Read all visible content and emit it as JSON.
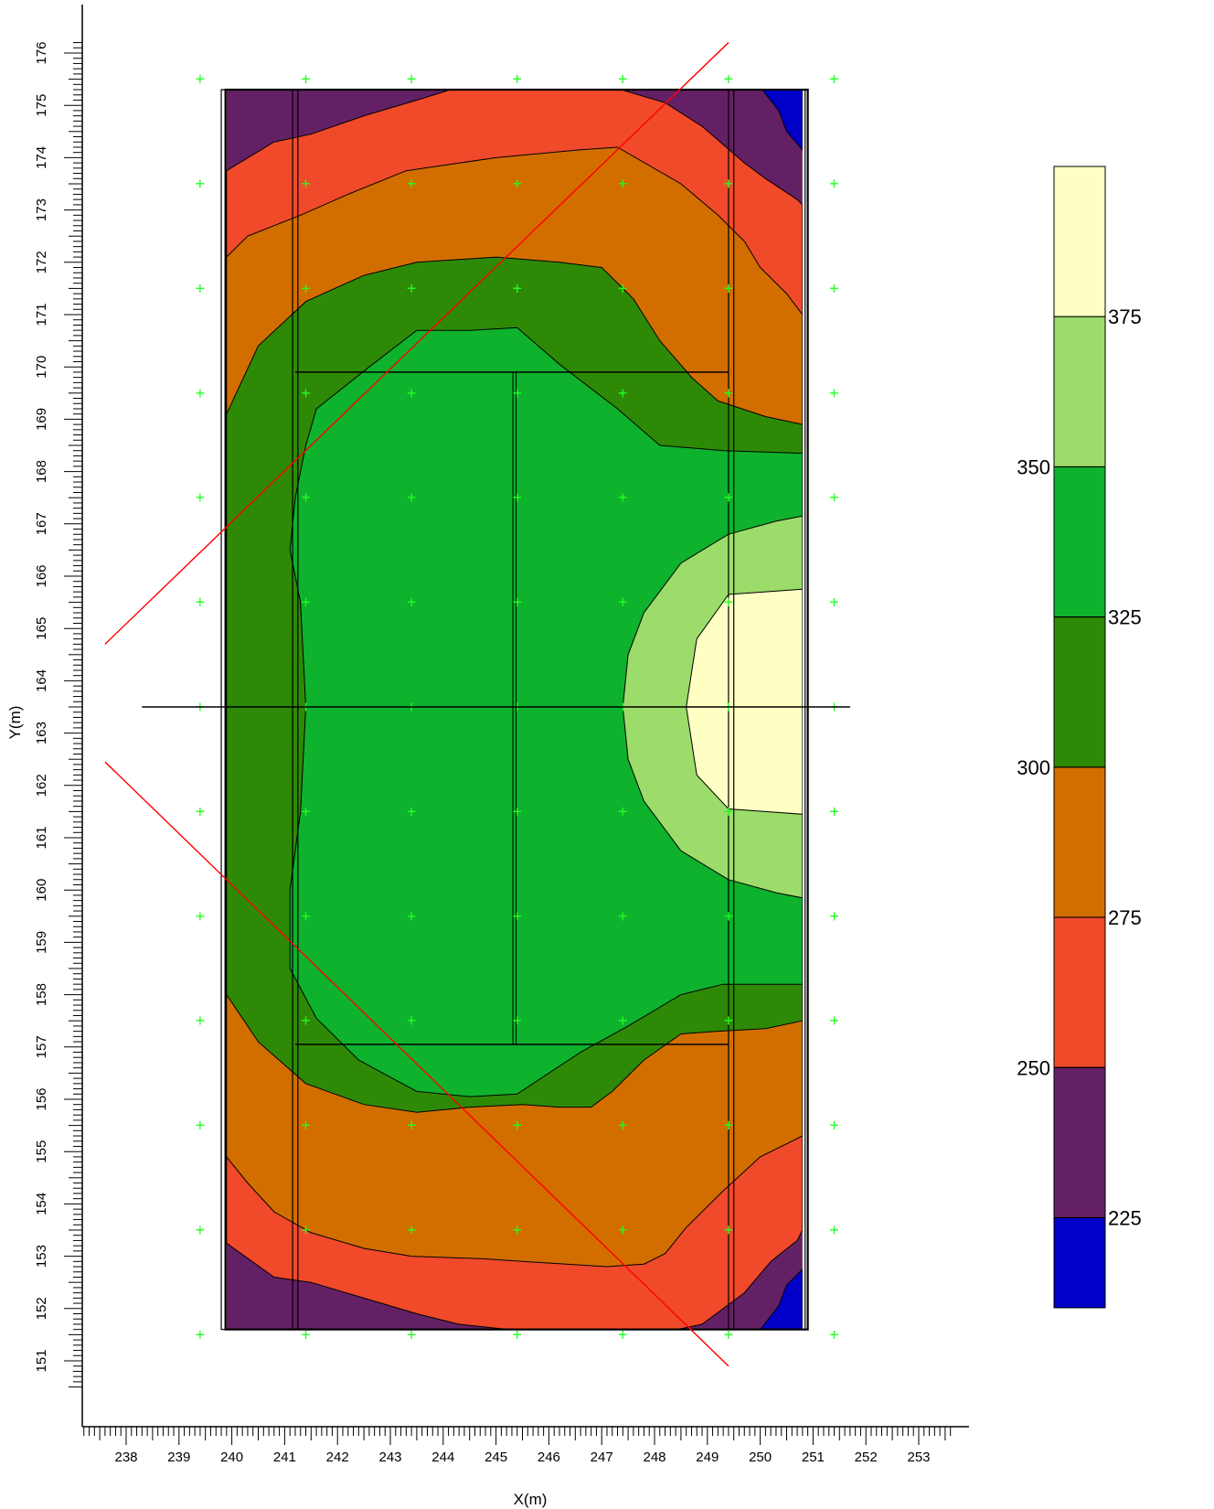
{
  "chart_data": {
    "type": "contour",
    "xlabel": "X(m)",
    "ylabel": "Y(m)",
    "xlim": [
      237.5,
      253.6
    ],
    "ylim": [
      150.7,
      176.2
    ],
    "x_ticks": [
      238,
      239,
      240,
      241,
      242,
      243,
      244,
      245,
      246,
      247,
      248,
      249,
      250,
      251,
      252,
      253
    ],
    "y_ticks": [
      151,
      152,
      153,
      154,
      155,
      156,
      157,
      158,
      159,
      160,
      161,
      162,
      163,
      164,
      165,
      166,
      167,
      168,
      169,
      170,
      171,
      172,
      173,
      174,
      175,
      176
    ],
    "colorbar": {
      "levels": [
        225,
        250,
        275,
        300,
        325,
        350,
        375
      ],
      "labels": [
        "225",
        "250",
        "275",
        "300",
        "325",
        "350",
        "375"
      ],
      "bands": [
        {
          "from": 210,
          "to": 225,
          "color": "#0000c8"
        },
        {
          "from": 225,
          "to": 250,
          "color": "#642064"
        },
        {
          "from": 250,
          "to": 275,
          "color": "#f04a2a"
        },
        {
          "from": 275,
          "to": 300,
          "color": "#d26e00"
        },
        {
          "from": 300,
          "to": 325,
          "color": "#2e8a06"
        },
        {
          "from": 325,
          "to": 350,
          "color": "#0eb22c"
        },
        {
          "from": 350,
          "to": 375,
          "color": "#9cdc6a"
        },
        {
          "from": 375,
          "to": 400,
          "color": "#ffffc4"
        }
      ]
    },
    "survey_grid": {
      "x": [
        239.4,
        241.4,
        243.4,
        245.4,
        247.4,
        249.4,
        251.4
      ],
      "y": [
        151.5,
        153.5,
        155.5,
        157.5,
        159.5,
        161.5,
        163.5,
        165.5,
        167.5,
        169.5,
        171.5,
        173.5,
        175.5
      ],
      "marker": "+",
      "color": "#22ff22"
    },
    "domain": {
      "x": [
        239.85,
        250.8
      ],
      "y": [
        151.6,
        175.3
      ]
    },
    "contour_fields": [
      {
        "level": 225,
        "color": "#642064",
        "polygon": [
          [
            239.9,
            175.3
          ],
          [
            251.0,
            175.3
          ],
          [
            251.0,
            151.6
          ],
          [
            239.9,
            151.6
          ]
        ]
      },
      {
        "level": 250,
        "color": "#f04a2a",
        "polygon": [
          [
            239.9,
            173.75
          ],
          [
            240.8,
            174.3
          ],
          [
            241.5,
            174.45
          ],
          [
            242.5,
            174.8
          ],
          [
            243.5,
            175.1
          ],
          [
            244.3,
            175.35
          ],
          [
            245.7,
            175.4
          ],
          [
            247.2,
            175.35
          ],
          [
            248.2,
            175.05
          ],
          [
            248.9,
            174.6
          ],
          [
            249.7,
            173.9
          ],
          [
            250.1,
            173.6
          ],
          [
            250.7,
            173.2
          ],
          [
            250.8,
            173.1
          ],
          [
            250.8,
            153.5
          ],
          [
            250.7,
            153.3
          ],
          [
            250.2,
            152.9
          ],
          [
            249.7,
            152.3
          ],
          [
            248.9,
            151.7
          ],
          [
            248.2,
            151.55
          ],
          [
            247.2,
            151.55
          ],
          [
            245.7,
            151.55
          ],
          [
            244.3,
            151.7
          ],
          [
            243.5,
            151.9
          ],
          [
            242.5,
            152.2
          ],
          [
            241.5,
            152.5
          ],
          [
            240.8,
            152.6
          ],
          [
            239.9,
            153.25
          ]
        ]
      },
      {
        "level": 275,
        "color": "#d26e00",
        "polygon": [
          [
            239.9,
            172.1
          ],
          [
            240.3,
            172.5
          ],
          [
            241.3,
            172.9
          ],
          [
            242.2,
            173.3
          ],
          [
            243.3,
            173.75
          ],
          [
            245.0,
            174.0
          ],
          [
            246.6,
            174.15
          ],
          [
            247.3,
            174.2
          ],
          [
            248.5,
            173.5
          ],
          [
            249.2,
            172.9
          ],
          [
            249.7,
            172.4
          ],
          [
            250.0,
            171.9
          ],
          [
            250.5,
            171.4
          ],
          [
            250.8,
            171.0
          ],
          [
            250.8,
            155.3
          ],
          [
            250.6,
            155.2
          ],
          [
            250.0,
            154.9
          ],
          [
            249.3,
            154.25
          ],
          [
            248.6,
            153.55
          ],
          [
            248.2,
            153.05
          ],
          [
            247.8,
            152.85
          ],
          [
            247.1,
            152.8
          ],
          [
            245.5,
            152.9
          ],
          [
            244.8,
            152.95
          ],
          [
            243.4,
            153.0
          ],
          [
            242.5,
            153.15
          ],
          [
            241.5,
            153.45
          ],
          [
            240.8,
            153.85
          ],
          [
            240.3,
            154.4
          ],
          [
            239.9,
            154.9
          ]
        ]
      },
      {
        "level": 300,
        "color": "#2e8a06",
        "polygon": [
          [
            239.9,
            169.1
          ],
          [
            240.5,
            170.4
          ],
          [
            241.4,
            171.25
          ],
          [
            242.5,
            171.75
          ],
          [
            243.5,
            172.0
          ],
          [
            245.0,
            172.1
          ],
          [
            246.2,
            172.0
          ],
          [
            247.0,
            171.9
          ],
          [
            247.6,
            171.3
          ],
          [
            248.1,
            170.5
          ],
          [
            248.7,
            169.8
          ],
          [
            249.2,
            169.35
          ],
          [
            250.1,
            169.05
          ],
          [
            250.8,
            168.9
          ],
          [
            250.8,
            157.5
          ],
          [
            250.1,
            157.35
          ],
          [
            249.2,
            157.3
          ],
          [
            248.5,
            157.25
          ],
          [
            247.8,
            156.75
          ],
          [
            247.2,
            156.15
          ],
          [
            246.8,
            155.85
          ],
          [
            246.2,
            155.85
          ],
          [
            245.5,
            155.9
          ],
          [
            244.5,
            155.85
          ],
          [
            243.5,
            155.75
          ],
          [
            242.5,
            155.9
          ],
          [
            241.4,
            156.3
          ],
          [
            240.5,
            157.1
          ],
          [
            239.9,
            158.0
          ]
        ]
      },
      {
        "level": 325,
        "color": "#0eb22c",
        "polygon": [
          [
            241.2,
            167.5
          ],
          [
            241.4,
            168.5
          ],
          [
            241.6,
            169.2
          ],
          [
            242.6,
            170.0
          ],
          [
            243.5,
            170.7
          ],
          [
            244.5,
            170.7
          ],
          [
            245.4,
            170.75
          ],
          [
            246.2,
            170.05
          ],
          [
            247.3,
            169.2
          ],
          [
            248.1,
            168.5
          ],
          [
            249.3,
            168.4
          ],
          [
            250.8,
            168.35
          ],
          [
            250.8,
            158.2
          ],
          [
            249.3,
            158.2
          ],
          [
            248.5,
            158.0
          ],
          [
            247.5,
            157.4
          ],
          [
            246.6,
            156.9
          ],
          [
            246.0,
            156.5
          ],
          [
            245.4,
            156.1
          ],
          [
            244.5,
            156.05
          ],
          [
            243.5,
            156.15
          ],
          [
            242.4,
            156.75
          ],
          [
            241.6,
            157.55
          ],
          [
            241.1,
            158.5
          ],
          [
            241.1,
            160.0
          ],
          [
            241.3,
            161.5
          ],
          [
            241.4,
            163.5
          ],
          [
            241.3,
            165.5
          ],
          [
            241.1,
            166.5
          ]
        ]
      },
      {
        "level": 350,
        "color": "#9cdc6a",
        "polygon": [
          [
            250.8,
            167.15
          ],
          [
            250.3,
            167.05
          ],
          [
            249.4,
            166.8
          ],
          [
            248.5,
            166.25
          ],
          [
            247.8,
            165.3
          ],
          [
            247.5,
            164.5
          ],
          [
            247.4,
            163.5
          ],
          [
            247.5,
            162.5
          ],
          [
            247.8,
            161.7
          ],
          [
            248.5,
            160.75
          ],
          [
            249.4,
            160.2
          ],
          [
            250.3,
            159.95
          ],
          [
            250.8,
            159.85
          ]
        ]
      },
      {
        "level": 375,
        "color": "#ffffc4",
        "polygon": [
          [
            250.8,
            165.75
          ],
          [
            249.4,
            165.65
          ],
          [
            248.8,
            164.8
          ],
          [
            248.6,
            163.5
          ],
          [
            248.8,
            162.2
          ],
          [
            249.4,
            161.55
          ],
          [
            250.8,
            161.45
          ]
        ]
      },
      {
        "level": 210,
        "color": "#0000c8",
        "polygon": [
          [
            250.0,
            175.35
          ],
          [
            250.8,
            175.35
          ],
          [
            250.8,
            174.15
          ],
          [
            250.5,
            174.5
          ],
          [
            250.35,
            174.9
          ]
        ]
      },
      {
        "level": 210,
        "color": "#0000c8",
        "polygon": [
          [
            250.0,
            151.6
          ],
          [
            250.8,
            151.6
          ],
          [
            250.8,
            152.75
          ],
          [
            250.5,
            152.45
          ],
          [
            250.35,
            152.05
          ]
        ]
      }
    ],
    "overlay_lines": [
      {
        "color": "#ff0000",
        "points": [
          [
            237.6,
            164.7
          ],
          [
            249.4,
            176.2
          ]
        ]
      },
      {
        "color": "#ff0000",
        "points": [
          [
            237.6,
            162.45
          ],
          [
            249.4,
            150.9
          ]
        ]
      },
      {
        "color": "#000000",
        "points": [
          [
            238.3,
            163.5
          ],
          [
            251.7,
            163.5
          ]
        ]
      }
    ]
  }
}
